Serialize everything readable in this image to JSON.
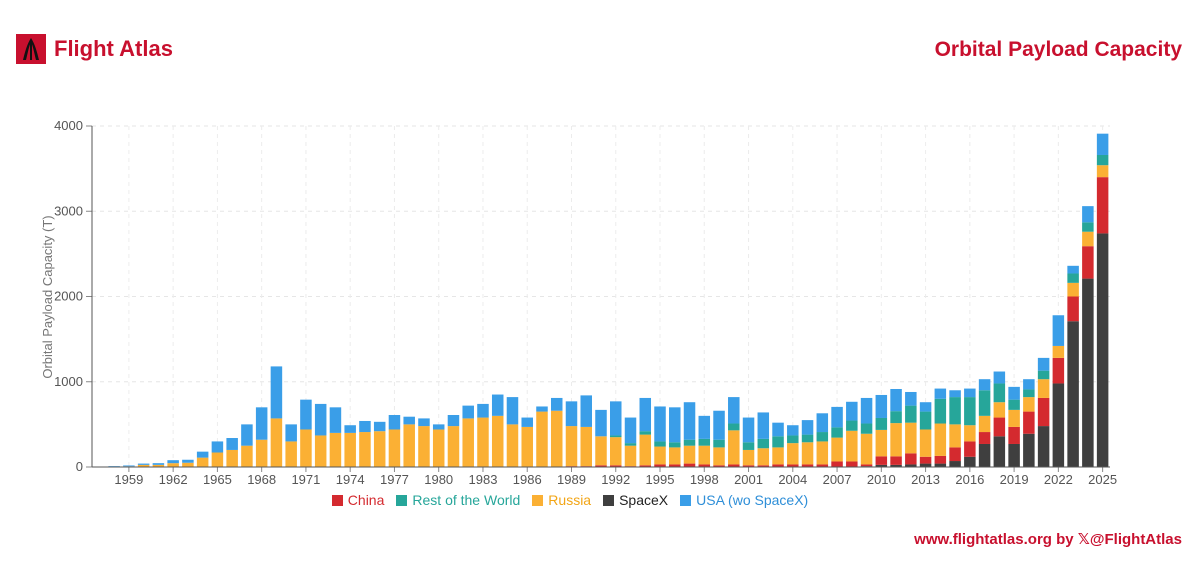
{
  "brand": {
    "name": "Flight Atlas",
    "logo_icon": "flight-atlas-logo"
  },
  "title": "Orbital Payload Capacity",
  "footer": "www.flightatlas.org by 𝕏@FlightAtlas",
  "colors": {
    "China": "#d42a2f",
    "Rest of the World": "#26a69a",
    "Russia": "#fbb034",
    "SpaceX": "#3f3f3f",
    "USA (wo SpaceX)": "#3a9ee8",
    "accent": "#c8102e"
  },
  "chart_data": {
    "type": "bar",
    "stacked": true,
    "ylabel": "Orbital Payload Capacity (T)",
    "ylim": [
      0,
      4000
    ],
    "yticks": [
      0,
      1000,
      2000,
      3000,
      4000
    ],
    "grid": true,
    "legend_position": "bottom",
    "xtick_labels": [
      "1959",
      "1962",
      "1965",
      "1968",
      "1971",
      "1974",
      "1977",
      "1980",
      "1983",
      "1986",
      "1989",
      "1992",
      "1995",
      "1998",
      "2001",
      "2004",
      "2007",
      "2010",
      "2013",
      "2016",
      "2019",
      "2022",
      "2025"
    ],
    "categories": [
      1957,
      1958,
      1959,
      1960,
      1961,
      1962,
      1963,
      1964,
      1965,
      1966,
      1967,
      1968,
      1969,
      1970,
      1971,
      1972,
      1973,
      1974,
      1975,
      1976,
      1977,
      1978,
      1979,
      1980,
      1981,
      1982,
      1983,
      1984,
      1985,
      1986,
      1987,
      1988,
      1989,
      1990,
      1991,
      1992,
      1993,
      1994,
      1995,
      1996,
      1997,
      1998,
      1999,
      2000,
      2001,
      2002,
      2003,
      2004,
      2005,
      2006,
      2007,
      2008,
      2009,
      2010,
      2011,
      2012,
      2013,
      2014,
      2015,
      2016,
      2017,
      2018,
      2019,
      2020,
      2021,
      2022,
      2023,
      2024,
      2025
    ],
    "series": [
      {
        "name": "SpaceX",
        "values": [
          0,
          0,
          0,
          0,
          0,
          0,
          0,
          0,
          0,
          0,
          0,
          0,
          0,
          0,
          0,
          0,
          0,
          0,
          0,
          0,
          0,
          0,
          0,
          0,
          0,
          0,
          0,
          0,
          0,
          0,
          0,
          0,
          0,
          0,
          0,
          0,
          0,
          0,
          0,
          0,
          0,
          0,
          0,
          0,
          0,
          0,
          0,
          0,
          0,
          0,
          5,
          5,
          10,
          25,
          25,
          30,
          40,
          40,
          70,
          120,
          270,
          360,
          270,
          390,
          480,
          980,
          1710,
          2210,
          2740
        ]
      },
      {
        "name": "China",
        "values": [
          0,
          0,
          0,
          0,
          0,
          0,
          0,
          0,
          0,
          0,
          0,
          0,
          0,
          0,
          0,
          0,
          0,
          0,
          0,
          0,
          0,
          0,
          0,
          0,
          0,
          0,
          0,
          0,
          0,
          0,
          0,
          0,
          10,
          10,
          20,
          20,
          10,
          20,
          30,
          30,
          40,
          30,
          20,
          30,
          20,
          20,
          30,
          30,
          30,
          30,
          60,
          60,
          20,
          100,
          100,
          130,
          80,
          90,
          160,
          180,
          140,
          220,
          200,
          260,
          330,
          300,
          290,
          380,
          660
        ]
      },
      {
        "name": "Russia",
        "values": [
          3,
          5,
          8,
          25,
          25,
          45,
          50,
          110,
          170,
          200,
          250,
          320,
          570,
          300,
          440,
          370,
          400,
          400,
          410,
          420,
          440,
          500,
          480,
          440,
          480,
          570,
          580,
          600,
          500,
          470,
          650,
          660,
          470,
          460,
          340,
          330,
          240,
          360,
          210,
          200,
          210,
          220,
          210,
          400,
          180,
          200,
          200,
          250,
          260,
          270,
          280,
          360,
          360,
          310,
          390,
          360,
          320,
          380,
          270,
          190,
          190,
          180,
          200,
          170,
          220,
          140,
          160,
          170,
          140
        ]
      },
      {
        "name": "Rest of the World",
        "values": [
          0,
          0,
          0,
          0,
          0,
          0,
          0,
          0,
          0,
          0,
          0,
          0,
          0,
          0,
          0,
          0,
          0,
          0,
          0,
          0,
          0,
          0,
          0,
          0,
          0,
          0,
          0,
          0,
          0,
          0,
          0,
          0,
          0,
          0,
          0,
          20,
          30,
          40,
          60,
          60,
          70,
          80,
          90,
          80,
          90,
          110,
          130,
          90,
          90,
          110,
          120,
          120,
          120,
          140,
          140,
          200,
          210,
          290,
          320,
          330,
          300,
          220,
          120,
          90,
          100,
          0,
          110,
          110,
          120
        ]
      },
      {
        "name": "USA (wo SpaceX)",
        "values": [
          2,
          5,
          10,
          15,
          20,
          35,
          35,
          70,
          130,
          140,
          250,
          380,
          610,
          200,
          350,
          370,
          300,
          90,
          130,
          110,
          170,
          90,
          90,
          60,
          130,
          150,
          160,
          250,
          320,
          110,
          60,
          150,
          290,
          370,
          310,
          400,
          300,
          390,
          410,
          410,
          440,
          270,
          340,
          310,
          290,
          310,
          160,
          120,
          170,
          220,
          240,
          220,
          300,
          270,
          260,
          160,
          110,
          120,
          80,
          100,
          130,
          140,
          150,
          120,
          150,
          360,
          90,
          190,
          250
        ]
      }
    ]
  },
  "chart_labels": [
    "China",
    "Rest of the World",
    "Russia",
    "SpaceX",
    "USA (wo SpaceX)"
  ]
}
